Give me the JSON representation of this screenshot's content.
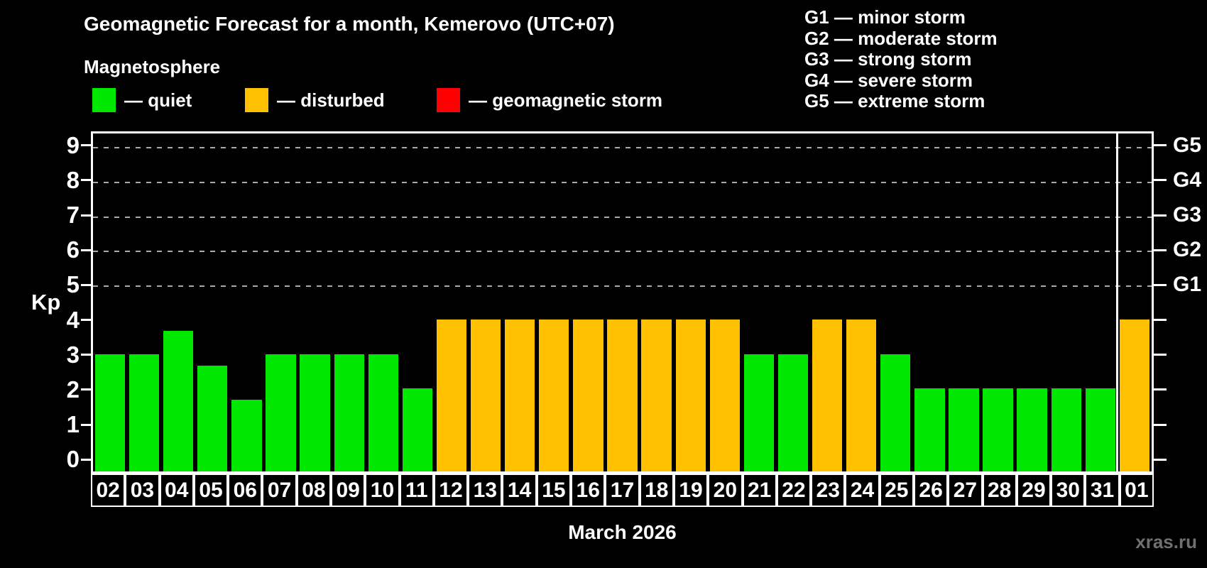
{
  "title": "Geomagnetic Forecast for a month, Kemerovo (UTC+07)",
  "subtitle": "Magnetosphere",
  "legend": [
    {
      "name": "quiet",
      "label": "— quiet",
      "color": "#00e800"
    },
    {
      "name": "disturbed",
      "label": "— disturbed",
      "color": "#ffc000"
    },
    {
      "name": "storm",
      "label": "— geomagnetic storm",
      "color": "#ff0000"
    }
  ],
  "g_scale_legend": [
    "G1 — minor storm",
    "G2 — moderate storm",
    "G3 — strong storm",
    "G4 — severe storm",
    "G5 — extreme storm"
  ],
  "watermark": "xras.ru",
  "colors": {
    "background": "#000000",
    "axis": "#ffffff",
    "gridline": "#aaaaaa",
    "quiet": "#00e800",
    "disturbed": "#ffc000",
    "storm": "#ff0000",
    "watermark": "#707070"
  },
  "chart_data": {
    "type": "bar",
    "title": "Geomagnetic Forecast for a month, Kemerovo (UTC+07)",
    "xlabel": "March 2026",
    "ylabel": "Kp",
    "ylim": [
      0,
      9
    ],
    "y_ticks": [
      0,
      1,
      2,
      3,
      4,
      5,
      6,
      7,
      8,
      9
    ],
    "grid": "horizontal dashed lines at Kp 5-9 only",
    "gridlines_at": [
      5,
      6,
      7,
      8,
      9
    ],
    "legend_position": "top-left",
    "right_axis_labels": [
      {
        "label": "G1",
        "kp": 5
      },
      {
        "label": "G2",
        "kp": 6
      },
      {
        "label": "G3",
        "kp": 7
      },
      {
        "label": "G4",
        "kp": 8
      },
      {
        "label": "G5",
        "kp": 9
      }
    ],
    "categories": [
      "02",
      "03",
      "04",
      "05",
      "06",
      "07",
      "08",
      "09",
      "10",
      "11",
      "12",
      "13",
      "14",
      "15",
      "16",
      "17",
      "18",
      "19",
      "20",
      "21",
      "22",
      "23",
      "24",
      "25",
      "26",
      "27",
      "28",
      "29",
      "30",
      "31",
      "01"
    ],
    "values": [
      3,
      3,
      3.67,
      2.67,
      1.67,
      3,
      3,
      3,
      3,
      2,
      4,
      4,
      4,
      4,
      4,
      4,
      4,
      4,
      4,
      3,
      3,
      4,
      4,
      3,
      2,
      2,
      2,
      2,
      2,
      2,
      4
    ],
    "statuses": [
      "quiet",
      "quiet",
      "quiet",
      "quiet",
      "quiet",
      "quiet",
      "quiet",
      "quiet",
      "quiet",
      "quiet",
      "disturbed",
      "disturbed",
      "disturbed",
      "disturbed",
      "disturbed",
      "disturbed",
      "disturbed",
      "disturbed",
      "disturbed",
      "quiet",
      "quiet",
      "disturbed",
      "disturbed",
      "quiet",
      "quiet",
      "quiet",
      "quiet",
      "quiet",
      "quiet",
      "quiet",
      "disturbed"
    ],
    "status_colors": {
      "quiet": "#00e800",
      "disturbed": "#ffc000",
      "storm": "#ff0000"
    },
    "month_separator_before_category": "01"
  }
}
